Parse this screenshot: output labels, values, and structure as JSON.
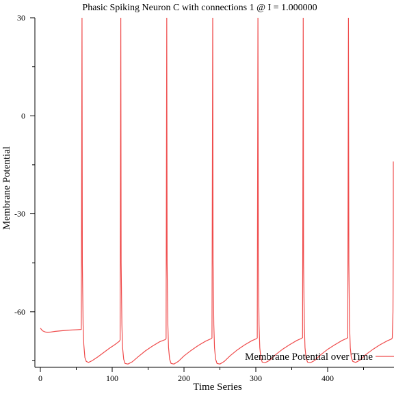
{
  "chart_data": {
    "type": "line",
    "title": "Phasic Spiking Neuron C with connections 1 @ I = 1.000000",
    "xlabel": "Time Series",
    "ylabel": "Membrane Potential",
    "xlim": [
      0,
      500
    ],
    "ylim": [
      -77,
      30
    ],
    "x_ticks": [
      0,
      100,
      200,
      300,
      400
    ],
    "y_ticks": [
      30,
      0,
      -30,
      -60
    ],
    "x_tick_labels": [
      "0",
      "100",
      "200",
      "300",
      "400"
    ],
    "y_tick_labels": [
      "30",
      "0",
      "-30",
      "-60"
    ],
    "grid": false,
    "legend_position": "bottom-right",
    "series": [
      {
        "name": "Membrane Potential over Time",
        "color": "#ef4b4b",
        "x": [
          0,
          3,
          7,
          10,
          15,
          20,
          30,
          40,
          50,
          57,
          58,
          58.5,
          59.5,
          60.5,
          62,
          64,
          67,
          72,
          80,
          88,
          96,
          104,
          110,
          111,
          112,
          112.5,
          113.5,
          114.5,
          116,
          118,
          122,
          128,
          136,
          146,
          156,
          166,
          174,
          175,
          176,
          176.5,
          177.5,
          178.5,
          180,
          182,
          186,
          192,
          200,
          210,
          220,
          230,
          238,
          239,
          240,
          240.5,
          241.5,
          242.5,
          244,
          246,
          250,
          256,
          264,
          274,
          284,
          294,
          301,
          302,
          303,
          303.5,
          304.5,
          305.5,
          307,
          309,
          313,
          319,
          327,
          337,
          347,
          357,
          364,
          365,
          366,
          366.5,
          367.5,
          368.5,
          370,
          372,
          376,
          382,
          390,
          400,
          410,
          420,
          427,
          428,
          429,
          429.5,
          430.5,
          431.5,
          433,
          435,
          439,
          445,
          453,
          463,
          473,
          483,
          489,
          490,
          491,
          491.5,
          492.5,
          494,
          495,
          496,
          497.5
        ],
        "values": [
          -65,
          -65.8,
          -66.2,
          -66.3,
          -66.2,
          -66.0,
          -65.8,
          -65.6,
          -65.5,
          -65.4,
          30,
          -45,
          -64,
          -70,
          -74,
          -75.2,
          -75.5,
          -75.0,
          -73.8,
          -72.5,
          -71.2,
          -70.0,
          -69.0,
          -68.6,
          30,
          -45,
          -64,
          -71,
          -74.5,
          -75.8,
          -76.0,
          -75.3,
          -73.8,
          -72.0,
          -70.5,
          -69.2,
          -68.5,
          -68.2,
          30,
          -45,
          -64,
          -71,
          -74.5,
          -75.8,
          -76.0,
          -75.2,
          -73.5,
          -71.8,
          -70.3,
          -69.0,
          -68.2,
          -68.0,
          30,
          -45,
          -64,
          -71,
          -74.5,
          -75.8,
          -76.0,
          -75.2,
          -73.5,
          -71.7,
          -70.2,
          -68.9,
          -68.2,
          -68.0,
          30,
          -45,
          -64,
          -71,
          -74.2,
          -75.4,
          -75.6,
          -74.9,
          -73.2,
          -71.5,
          -70.1,
          -68.8,
          -68.1,
          -67.9,
          30,
          -45,
          -64,
          -71,
          -74.2,
          -75.4,
          -75.6,
          -74.9,
          -73.2,
          -71.5,
          -70.1,
          -68.8,
          -68.1,
          -67.9,
          30,
          -45,
          -64,
          -71,
          -74.0,
          -75.2,
          -75.5,
          -74.8,
          -73.1,
          -71.5,
          -70.1,
          -68.9,
          -68.3,
          -68.0,
          -60,
          -35,
          -16,
          -14,
          -14,
          -14,
          -14
        ]
      }
    ]
  }
}
